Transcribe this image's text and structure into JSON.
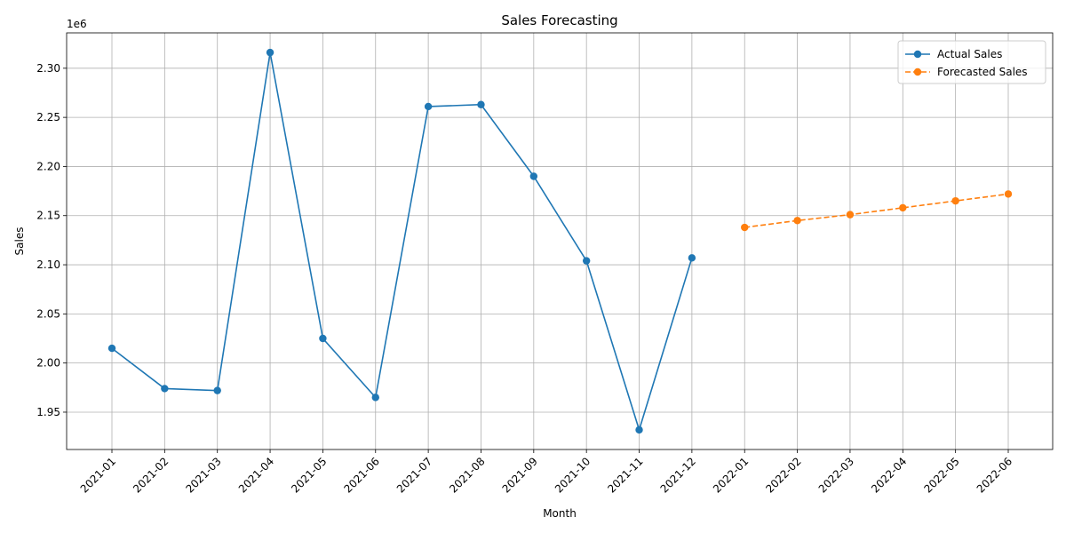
{
  "chart_data": {
    "type": "line",
    "title": "Sales Forecasting",
    "xlabel": "Month",
    "ylabel": "Sales",
    "y_offset_label": "1e6",
    "grid": true,
    "legend_position": "top-right",
    "categories": [
      "2021-01",
      "2021-02",
      "2021-03",
      "2021-04",
      "2021-05",
      "2021-06",
      "2021-07",
      "2021-08",
      "2021-09",
      "2021-10",
      "2021-11",
      "2021-12",
      "2022-01",
      "2022-02",
      "2022-03",
      "2022-04",
      "2022-05",
      "2022-06"
    ],
    "y_ticks": [
      1.95,
      2.0,
      2.05,
      2.1,
      2.15,
      2.2,
      2.25,
      2.3
    ],
    "y_tick_labels": [
      "1.95",
      "2.00",
      "2.05",
      "2.10",
      "2.15",
      "2.20",
      "2.25",
      "2.30"
    ],
    "ylim": [
      1.912,
      2.336
    ],
    "series": [
      {
        "name": "Actual Sales",
        "color": "#1f77b4",
        "style": "solid",
        "x": [
          "2021-01",
          "2021-02",
          "2021-03",
          "2021-04",
          "2021-05",
          "2021-06",
          "2021-07",
          "2021-08",
          "2021-09",
          "2021-10",
          "2021-11",
          "2021-12"
        ],
        "values": [
          2.015,
          1.974,
          1.972,
          2.316,
          2.025,
          1.965,
          2.261,
          2.263,
          2.19,
          2.104,
          1.932,
          2.107
        ]
      },
      {
        "name": "Forecasted Sales",
        "color": "#ff7f0e",
        "style": "dashed",
        "x": [
          "2022-01",
          "2022-02",
          "2022-03",
          "2022-04",
          "2022-05",
          "2022-06"
        ],
        "values": [
          2.138,
          2.145,
          2.151,
          2.158,
          2.165,
          2.172
        ]
      }
    ]
  }
}
